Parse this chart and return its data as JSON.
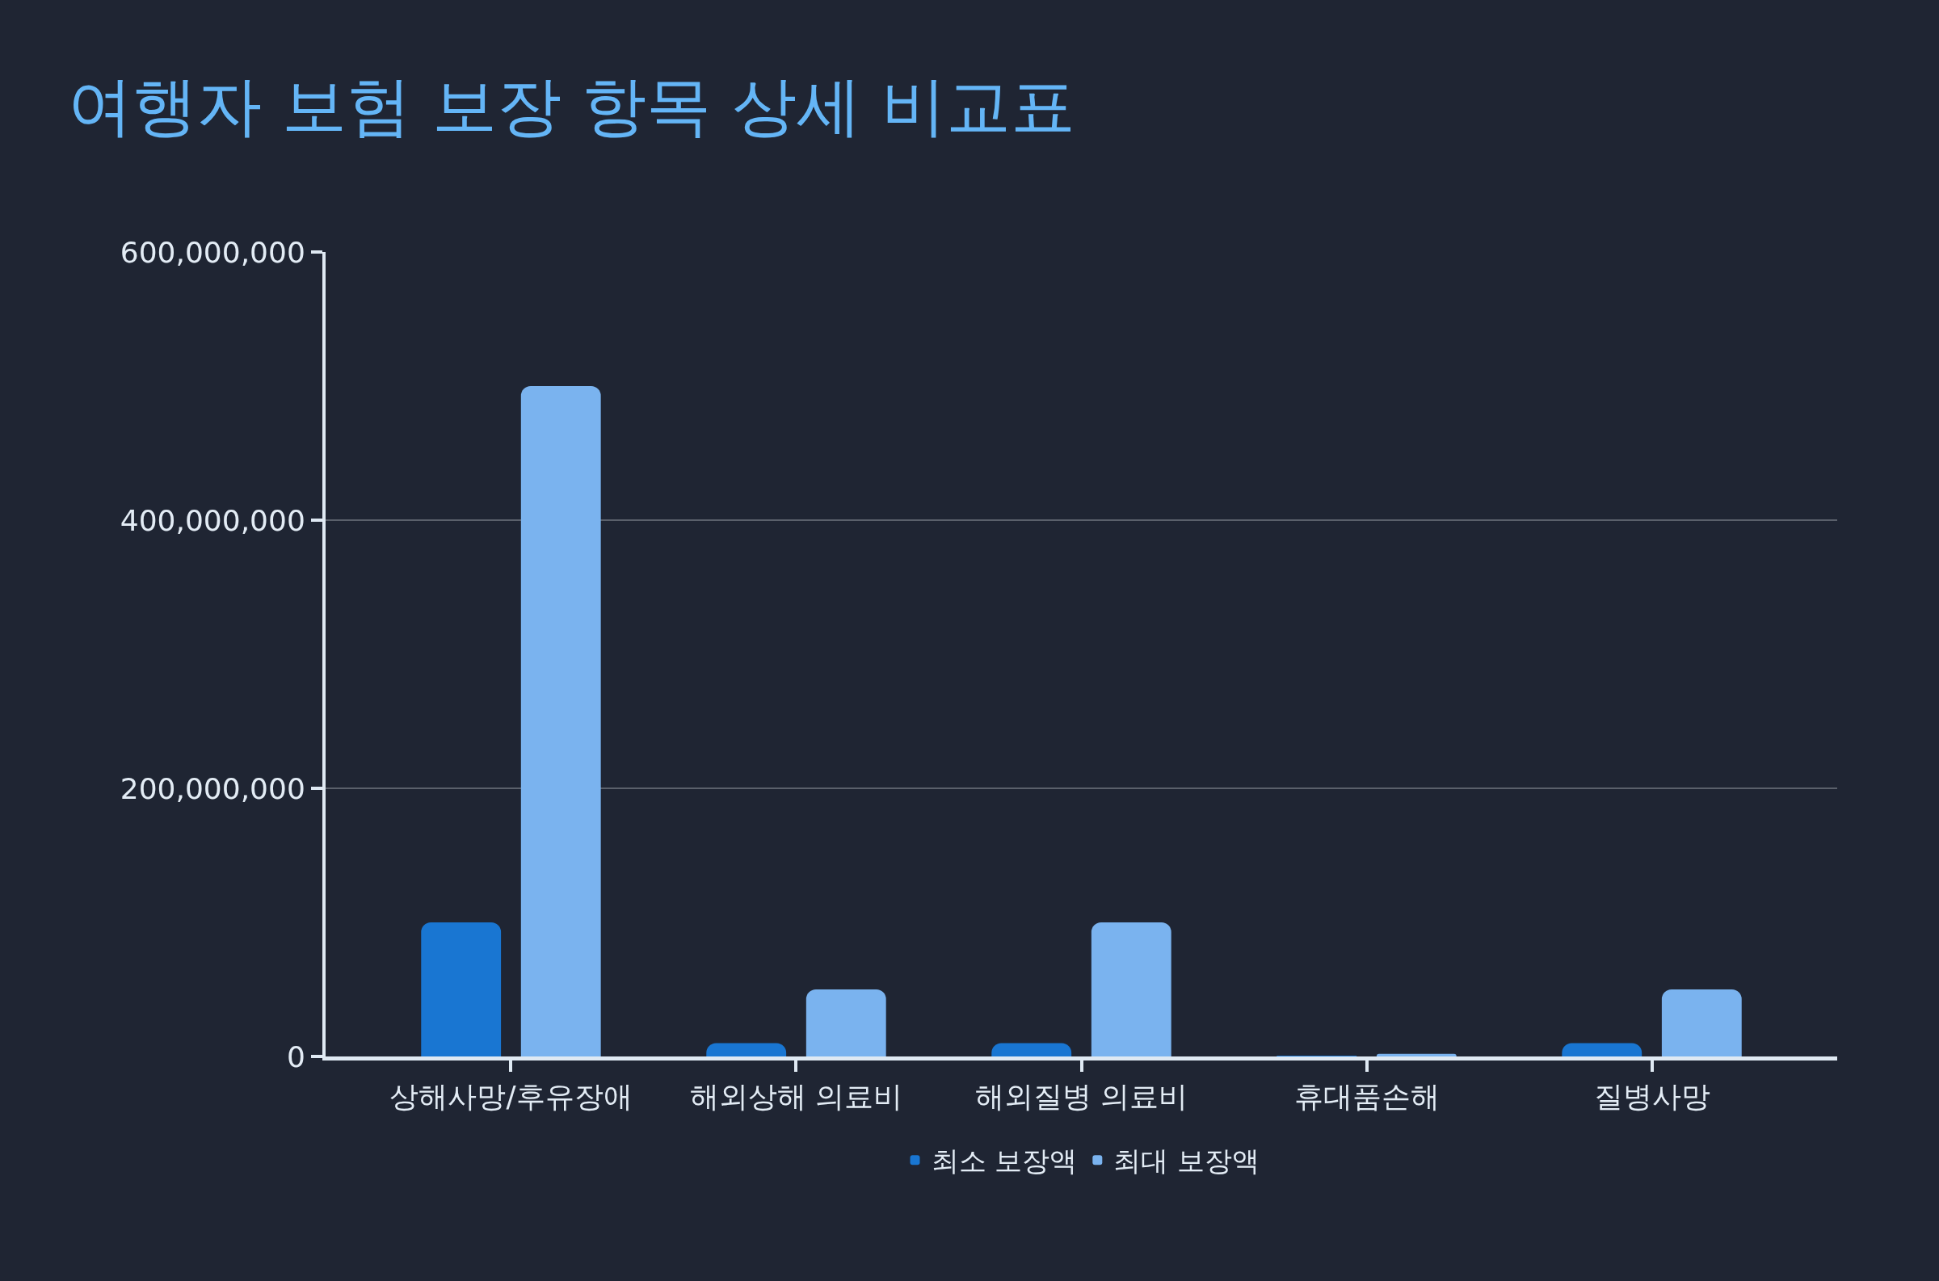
{
  "chart_data": {
    "type": "bar",
    "title": "여행자 보험 보장 항목 상세 비교표",
    "categories": [
      "상해사망/후유장애",
      "해외상해 의료비",
      "해외질병 의료비",
      "휴대품손해",
      "질병사망"
    ],
    "series": [
      {
        "name": "최소 보장액",
        "color": "#1976d2",
        "values": [
          100000000,
          10000000,
          10000000,
          300000,
          10000000
        ]
      },
      {
        "name": "최대 보장액",
        "color": "#7ab3ef",
        "values": [
          500000000,
          50000000,
          100000000,
          2000000,
          50000000
        ]
      }
    ],
    "ylim": [
      0,
      600000000
    ],
    "yticks": [
      {
        "value": 0,
        "label": "0"
      },
      {
        "value": 200000000,
        "label": "200,000,000"
      },
      {
        "value": 400000000,
        "label": "400,000,000"
      },
      {
        "value": 600000000,
        "label": "600,000,000"
      }
    ],
    "grid": "y",
    "legend": "bottom"
  }
}
